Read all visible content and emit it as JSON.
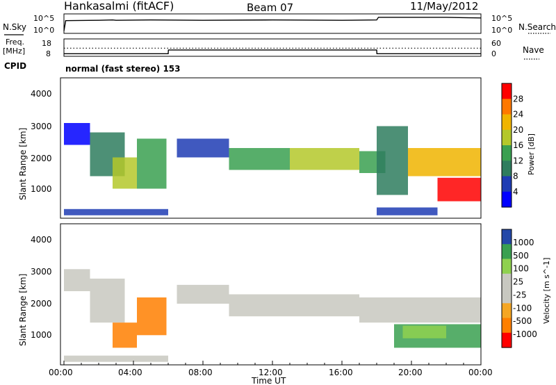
{
  "header": {
    "station": "Hankasalmi (fitACF)",
    "beam": "Beam 07",
    "date": "11/May/2012"
  },
  "noise_panel": {
    "left_label": "N.Sky",
    "right_label": "N.Search",
    "left_ticks": [
      "10^5",
      "10^0"
    ],
    "right_ticks": [
      "10^5",
      "10^0"
    ]
  },
  "freq_panel": {
    "left_label_line1": "Freq.",
    "left_label_line2": "[MHz]",
    "right_label": "Nave",
    "left_ticks": [
      "18",
      "8"
    ],
    "right_ticks": [
      "60",
      "0"
    ]
  },
  "cpid": {
    "label": "CPID",
    "text": "normal (fast stereo) 153"
  },
  "axes": {
    "ylabel": "Slant Range [km]",
    "xlabel": "Time UT",
    "y_ticks": [
      "4000",
      "3000",
      "2000",
      "1000"
    ],
    "x_ticks": [
      "00:00",
      "04:00",
      "08:00",
      "12:00",
      "16:00",
      "20:00",
      "00:00"
    ]
  },
  "colors": {
    "power": [
      "#0000ff",
      "#1e3cb4",
      "#2e7d5e",
      "#3aa050",
      "#b4c82a",
      "#f0b400",
      "#ff7800",
      "#ff0000"
    ],
    "velocity": [
      "#ff0000",
      "#ff7f00",
      "#f5a623",
      "#c8c8c0",
      "#c8c8c0",
      "#8fd14f",
      "#3aa050",
      "#2448a8"
    ]
  },
  "chart_data": [
    {
      "type": "line",
      "title": "N.Sky / N.Search",
      "x": [
        0,
        0.1,
        2.0,
        2.8,
        3.0,
        5.0,
        8.0,
        12.0,
        16.0,
        18.0,
        18.1,
        22.0,
        23.0,
        24.0
      ],
      "series": [
        {
          "name": "N.Sky",
          "values": [
            0.3,
            3.4,
            3.5,
            3.6,
            3.5,
            3.6,
            3.5,
            3.6,
            3.5,
            3.6,
            4.4,
            4.4,
            4.3,
            4.2
          ]
        }
      ],
      "ylim": [
        0,
        5
      ]
    },
    {
      "type": "line",
      "title": "Freq. / Nave",
      "x": [
        0,
        6.0,
        6.01,
        18.0,
        18.01,
        24.0
      ],
      "series": [
        {
          "name": "Freq.",
          "values": [
            9.5,
            9.5,
            12.5,
            12.5,
            9.5,
            9.5
          ]
        },
        {
          "name": "Nave",
          "values": [
            32,
            32,
            32,
            32,
            32,
            32
          ]
        }
      ]
    },
    {
      "type": "heatmap",
      "title": "Power [dB]",
      "colorbar_ticks": [
        "4",
        "8",
        "12",
        "16",
        "20",
        "24",
        "28"
      ],
      "x_unit": "hours UT",
      "y_unit": "km",
      "xlim": [
        0,
        24
      ],
      "ylim": [
        200,
        4600
      ],
      "regions": [
        {
          "t0": 0.0,
          "t1": 1.5,
          "r0": 2500,
          "r1": 3200,
          "level": 1
        },
        {
          "t0": 1.5,
          "t1": 3.5,
          "r0": 1500,
          "r1": 2900,
          "level": 3
        },
        {
          "t0": 2.8,
          "t1": 4.2,
          "r0": 1100,
          "r1": 2100,
          "level": 5
        },
        {
          "t0": 4.2,
          "t1": 5.9,
          "r0": 1100,
          "r1": 2700,
          "level": 4
        },
        {
          "t0": 6.5,
          "t1": 9.5,
          "r0": 2100,
          "r1": 2700,
          "level": 2
        },
        {
          "t0": 9.5,
          "t1": 13.0,
          "r0": 1700,
          "r1": 2400,
          "level": 4
        },
        {
          "t0": 13.0,
          "t1": 17.0,
          "r0": 1700,
          "r1": 2400,
          "level": 5
        },
        {
          "t0": 17.0,
          "t1": 18.5,
          "r0": 1600,
          "r1": 2300,
          "level": 4
        },
        {
          "t0": 18.0,
          "t1": 19.8,
          "r0": 900,
          "r1": 3100,
          "level": 3
        },
        {
          "t0": 19.8,
          "t1": 24.0,
          "r0": 1500,
          "r1": 2400,
          "level": 6
        },
        {
          "t0": 21.5,
          "t1": 24.0,
          "r0": 700,
          "r1": 1450,
          "level": 8
        },
        {
          "t0": 0.0,
          "t1": 6.0,
          "r0": 250,
          "r1": 450,
          "level": 2
        },
        {
          "t0": 18.0,
          "t1": 21.5,
          "r0": 250,
          "r1": 500,
          "level": 2
        }
      ]
    },
    {
      "type": "heatmap",
      "title": "Velocity [m s^-1]",
      "colorbar_ticks": [
        "-1000",
        "-500",
        "-100",
        "-25",
        "25",
        "100",
        "500",
        "1000"
      ],
      "x_unit": "hours UT",
      "y_unit": "km",
      "xlim": [
        0,
        24
      ],
      "ylim": [
        200,
        4600
      ],
      "regions": [
        {
          "t0": 0.0,
          "t1": 1.5,
          "r0": 2500,
          "r1": 3200,
          "level": 4
        },
        {
          "t0": 1.5,
          "t1": 3.5,
          "r0": 1500,
          "r1": 2900,
          "level": 4
        },
        {
          "t0": 2.8,
          "t1": 4.2,
          "r0": 700,
          "r1": 1500,
          "level": 2
        },
        {
          "t0": 4.2,
          "t1": 5.9,
          "r0": 1100,
          "r1": 2300,
          "level": 2
        },
        {
          "t0": 6.5,
          "t1": 9.5,
          "r0": 2100,
          "r1": 2700,
          "level": 4
        },
        {
          "t0": 9.5,
          "t1": 17.0,
          "r0": 1700,
          "r1": 2400,
          "level": 4
        },
        {
          "t0": 17.0,
          "t1": 24.0,
          "r0": 1500,
          "r1": 2300,
          "level": 4
        },
        {
          "t0": 19.0,
          "t1": 24.0,
          "r0": 700,
          "r1": 1450,
          "level": 7
        },
        {
          "t0": 19.5,
          "t1": 22.0,
          "r0": 1000,
          "r1": 1400,
          "level": 6
        },
        {
          "t0": 0.0,
          "t1": 6.0,
          "r0": 250,
          "r1": 450,
          "level": 4
        }
      ]
    }
  ]
}
